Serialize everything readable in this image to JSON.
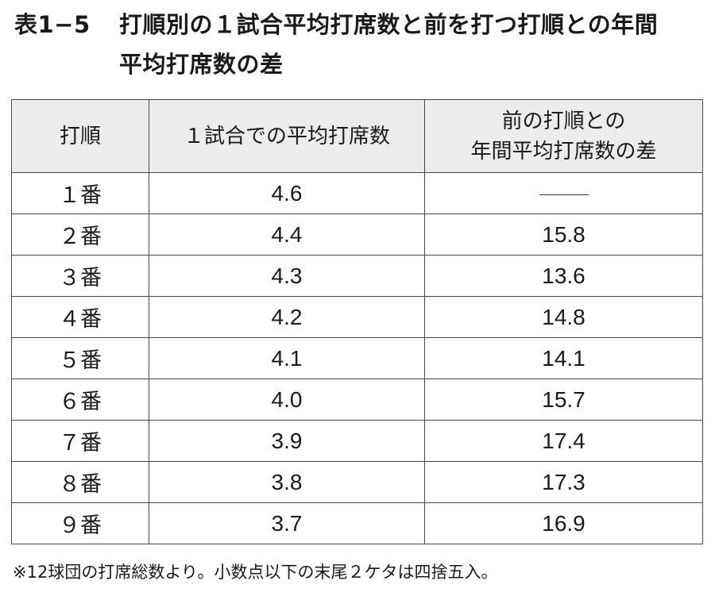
{
  "title": {
    "id": "表1−5",
    "line1": "打順別の１試合平均打席数と前を打つ打順との年間",
    "line2": "平均打席数の差"
  },
  "table": {
    "headers": {
      "order": "打順",
      "avg": "１試合での平均打席数",
      "diff_line1": "前の打順との",
      "diff_line2": "年間平均打席数の差"
    },
    "rows": [
      {
        "order": "１番",
        "avg": "4.6",
        "diff": "——"
      },
      {
        "order": "２番",
        "avg": "4.4",
        "diff": "15.8"
      },
      {
        "order": "３番",
        "avg": "4.3",
        "diff": "13.6"
      },
      {
        "order": "４番",
        "avg": "4.2",
        "diff": "14.8"
      },
      {
        "order": "５番",
        "avg": "4.1",
        "diff": "14.1"
      },
      {
        "order": "６番",
        "avg": "4.0",
        "diff": "15.7"
      },
      {
        "order": "７番",
        "avg": "3.9",
        "diff": "17.4"
      },
      {
        "order": "８番",
        "avg": "3.8",
        "diff": "17.3"
      },
      {
        "order": "９番",
        "avg": "3.7",
        "diff": "16.9"
      }
    ]
  },
  "footnote": "※12球団の打席総数より。小数点以下の末尾２ケタは四捨五入。"
}
